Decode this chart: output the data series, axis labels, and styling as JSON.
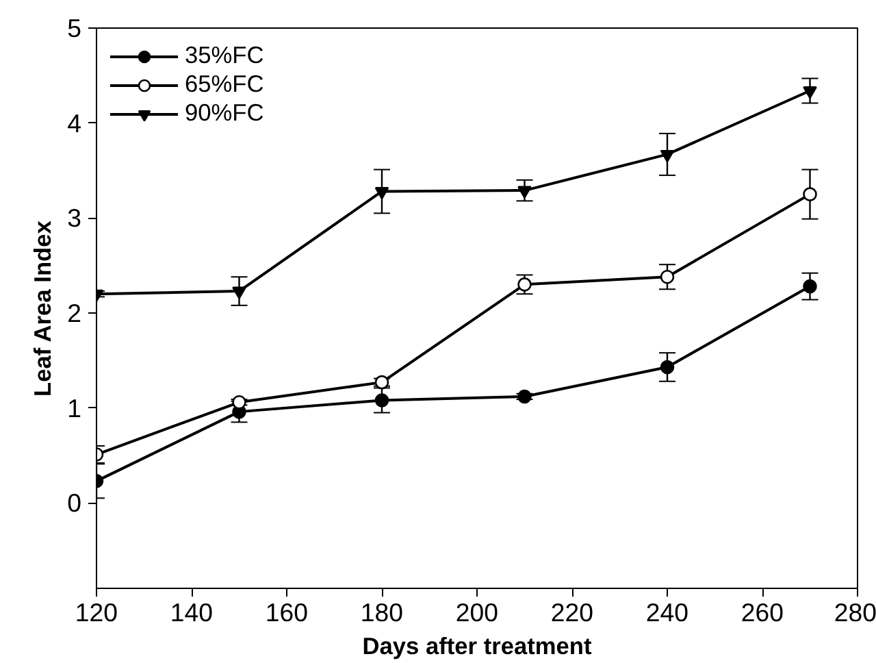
{
  "chart_data": {
    "type": "line",
    "xlabel": "Days after treatment",
    "ylabel": "Leaf Area Index",
    "x": [
      120,
      150,
      180,
      210,
      240,
      270
    ],
    "series": [
      {
        "name": "35%FC",
        "color": "#000000",
        "marker": "circle",
        "values": [
          0.23,
          0.96,
          1.08,
          1.12,
          1.43,
          2.28
        ],
        "errors": [
          0.18,
          0.11,
          0.13,
          0.03,
          0.15,
          0.14
        ]
      },
      {
        "name": "65%FC",
        "color": "#000000",
        "marker": "circle_open",
        "values": [
          0.51,
          1.06,
          1.27,
          2.3,
          2.38,
          3.25
        ],
        "errors": [
          0.09,
          0.03,
          0.04,
          0.1,
          0.13,
          0.26
        ]
      },
      {
        "name": "90%FC",
        "color": "#000000",
        "marker": "triangle",
        "values": [
          2.2,
          2.23,
          3.28,
          3.29,
          3.67,
          4.34
        ],
        "errors": [
          0.03,
          0.15,
          0.23,
          0.11,
          0.22,
          0.13
        ]
      }
    ],
    "xlim": [
      120,
      280
    ],
    "xticks": [
      120,
      140,
      160,
      180,
      200,
      220,
      240,
      260,
      280
    ],
    "ylim": [
      -0.9,
      5
    ],
    "yticks": [
      0,
      1,
      2,
      3,
      4,
      5
    ],
    "grid": false,
    "legend": "top left",
    "line_style": "solid"
  }
}
